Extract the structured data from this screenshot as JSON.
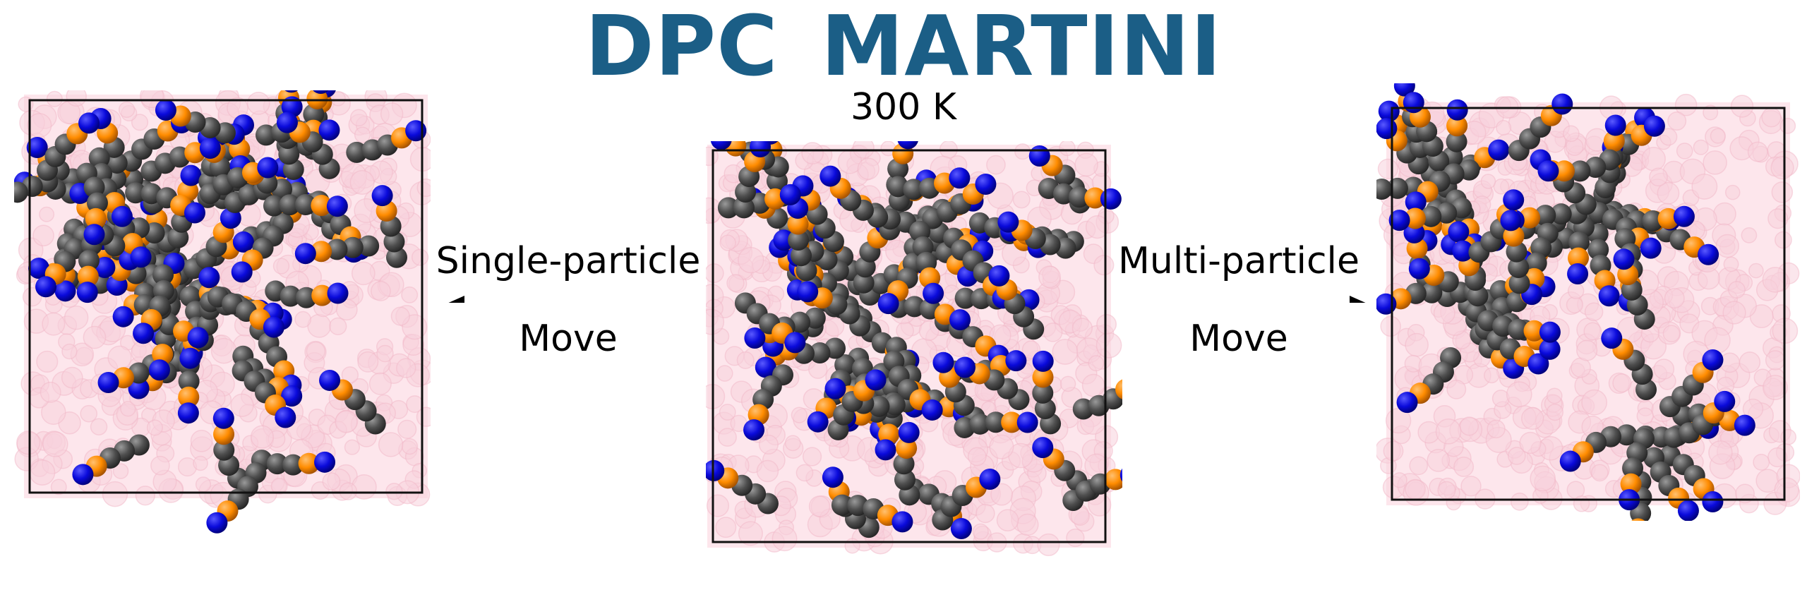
{
  "title": "DPC MARTINI",
  "temperature": "300 K",
  "left_move": {
    "line1": "Single-particle",
    "line2": "Move"
  },
  "right_move": {
    "line1": "Multi-particle",
    "line2": "Move"
  },
  "colors": {
    "title": "#1b5e86",
    "solvent": "#f8d2dc",
    "head_choline": "#0a0adb",
    "head_phosphate": "#ff8c00",
    "tail": "#4f4f4f",
    "box": "#111111"
  }
}
